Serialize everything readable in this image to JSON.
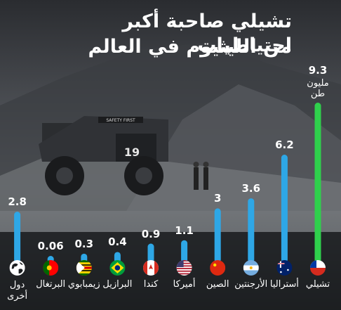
{
  "title_line1": "تشيلي صاحبة أكبر احتياطيات",
  "title_line2": "من الليثيوم في العالم",
  "colors": {
    "highlight": "#2fd04c",
    "bar": "#2ea7e6",
    "text": "#ffffff",
    "photo_text": "SAFETY FIRST"
  },
  "chart_data": {
    "type": "bar",
    "categories": [
      "تشيلي",
      "أستراليا",
      "الأرجنتين",
      "الصين",
      "أميركا",
      "كندا",
      "البرازيل",
      "زيمبابوي",
      "البرتغال",
      "دول أخرى"
    ],
    "values": [
      9.3,
      6.2,
      3.6,
      3,
      1.1,
      0.9,
      0.4,
      0.3,
      0.06,
      2.8
    ],
    "value_labels": [
      "9.3",
      "6.2",
      "3.6",
      "3",
      "1.1",
      "0.9",
      "0.4",
      "0.3",
      "0.06",
      "2.8"
    ],
    "unit_label_lines": [
      "مليون",
      "طن"
    ],
    "flags": [
      "chile-flag-icon",
      "australia-flag-icon",
      "argentina-flag-icon",
      "china-flag-icon",
      "usa-flag-icon",
      "canada-flag-icon",
      "brazil-flag-icon",
      "zimbabwe-flag-icon",
      "portugal-flag-icon",
      "globe-icon"
    ],
    "ylim": [
      0,
      9.3
    ],
    "grid": false,
    "xlabel": "",
    "ylabel": ""
  }
}
